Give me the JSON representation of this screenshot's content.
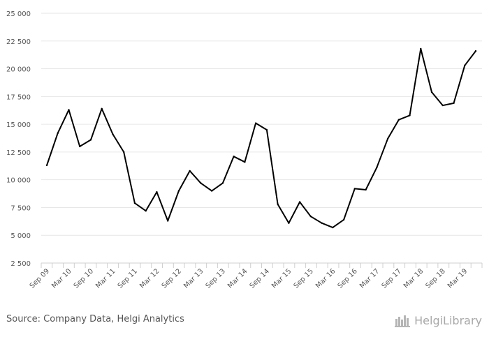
{
  "chart_data": {
    "type": "line",
    "title": "",
    "xlabel": "",
    "ylabel": "",
    "ylim": [
      2500,
      25000
    ],
    "y_ticks": [
      "25 000",
      "22 500",
      "20 000",
      "17 500",
      "15 000",
      "12 500",
      "10 000",
      "7 500",
      "5 000",
      "2 500"
    ],
    "y_tick_values": [
      25000,
      22500,
      20000,
      17500,
      15000,
      12500,
      10000,
      7500,
      5000,
      2500
    ],
    "x_tick_labels": [
      "Sep 09",
      "Mar 10",
      "Sep 10",
      "Mar 11",
      "Sep 11",
      "Mar 12",
      "Sep 12",
      "Mar 13",
      "Sep 13",
      "Mar 14",
      "Sep 14",
      "Mar 15",
      "Sep 15",
      "Mar 16",
      "Sep 16",
      "Mar 17",
      "Sep 17",
      "Mar 18",
      "Sep 18",
      "Mar 19"
    ],
    "grid": true,
    "line_color": "#000000",
    "series": [
      {
        "values": [
          11300,
          14200,
          16300,
          13000,
          13600,
          16400,
          14100,
          12500,
          7900,
          7200,
          8900,
          6300,
          9000,
          10800,
          9700,
          9000,
          9700,
          12100,
          11600,
          15100,
          14500,
          7800,
          6100,
          8000,
          6700,
          6100,
          5700,
          6400,
          9200,
          9100,
          11100,
          13700,
          15400,
          15800,
          21800,
          17900,
          16700,
          16900,
          20300,
          21600
        ]
      }
    ]
  },
  "footer": {
    "source": "Source: Company Data, Helgi Analytics",
    "brand": "HelgiLibrary"
  }
}
